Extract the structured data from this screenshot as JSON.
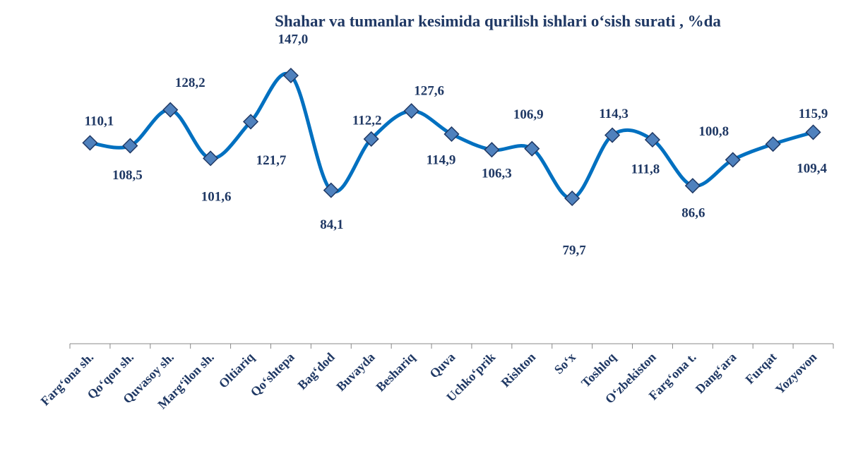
{
  "chart_data": {
    "type": "line",
    "title": "Shahar  va tumanlar  kesimida qurilish ishlari o‘sish surati , %da",
    "categories": [
      "Farg‘ona sh.",
      "Qo‘qon sh.",
      "Quvasoy sh.",
      "Marg‘ilon sh.",
      "Oltiariq",
      "Qo‘shtepa",
      "Bag‘dod",
      "Buvayda",
      "Beshariq",
      "Quva",
      "Uchko‘prik",
      "Rishton",
      "So‘x",
      "Toshloq",
      "O‘zbekiston",
      "Farg‘ona t.",
      "Dang‘ara",
      "Furqat",
      "Yozyovon"
    ],
    "series": [
      {
        "name": "",
        "color": "#0070c0",
        "values": [
          110.1,
          108.5,
          128.2,
          101.6,
          121.7,
          147.0,
          84.1,
          112.2,
          127.6,
          114.9,
          106.3,
          106.9,
          79.7,
          114.3,
          111.8,
          86.6,
          100.8,
          109.4,
          115.9
        ],
        "value_labels": [
          "110,1",
          "108,5",
          "128,2",
          "101,6",
          "121,7",
          "147,0",
          "84,1",
          "112,2",
          "127,6",
          "114,9",
          "106,3",
          "106,9",
          "79,7",
          "114,3",
          "111,8",
          "86,6",
          "100,8",
          "109,4",
          "115,9"
        ]
      }
    ]
  }
}
